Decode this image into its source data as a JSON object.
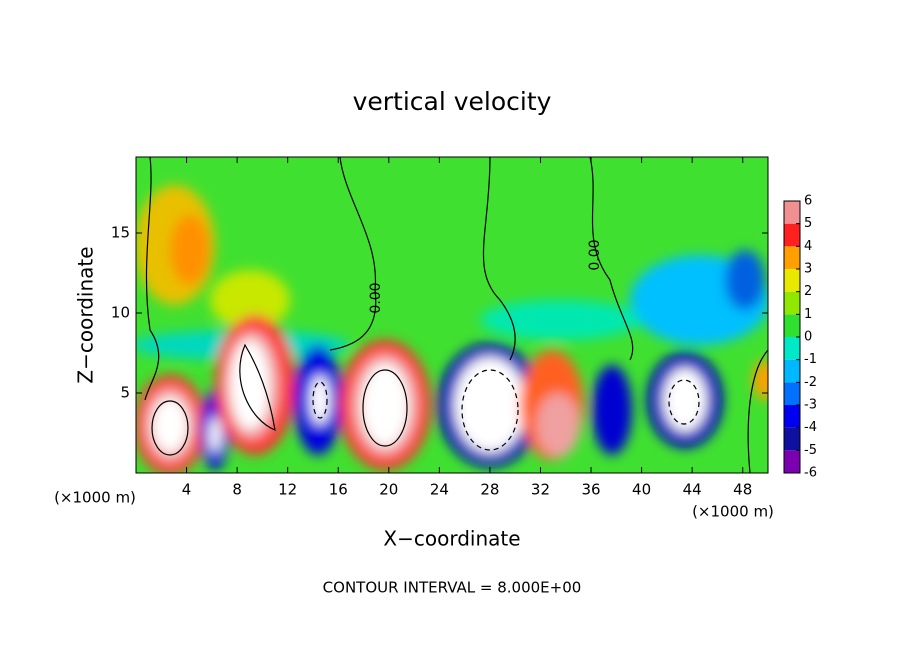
{
  "chart_data": {
    "type": "contour",
    "title": "vertical velocity",
    "x_label": "X−coordinate",
    "y_label": "Z−coordinate",
    "units": [
      "(×1000 m)",
      "(×1000 m)"
    ],
    "xlim": [
      0,
      50
    ],
    "xticks": [
      4,
      8,
      12,
      16,
      20,
      24,
      28,
      32,
      36,
      40,
      44,
      48
    ],
    "ylim": [
      0,
      19.75
    ],
    "yticks": [
      5,
      10,
      15
    ],
    "contour_labels": [
      "0.00",
      "0.00"
    ],
    "footer": "CONTOUR INTERVAL = 8.000E+00",
    "colorbar": {
      "ticks": [
        -6,
        -5,
        -4,
        -3,
        -2,
        -1,
        0,
        1,
        2,
        3,
        4,
        5,
        6
      ],
      "colors": [
        "#7a00b0",
        "#1010a0",
        "#0000f0",
        "#0070ff",
        "#00b8ff",
        "#00e8c8",
        "#30e030",
        "#90e800",
        "#e8e800",
        "#ffa000",
        "#ff2020",
        "#f09090"
      ]
    }
  }
}
